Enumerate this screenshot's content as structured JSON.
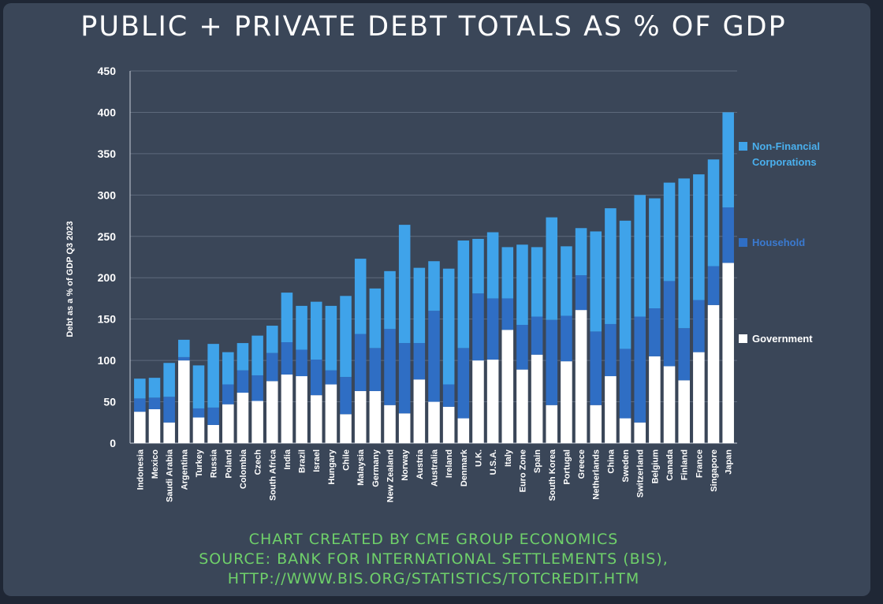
{
  "chart_data": {
    "type": "bar",
    "stacked": true,
    "title": "PUBLIC + PRIVATE DEBT TOTALS AS % OF GDP",
    "ylabel": "Debt as a % of GDP Q3 2023",
    "ylim": [
      0,
      450
    ],
    "yticks": [
      0,
      50,
      100,
      150,
      200,
      250,
      300,
      350,
      400,
      450
    ],
    "grid": true,
    "legend_position": "right",
    "categories": [
      "Indonesia",
      "Mexico",
      "Saudi Arabia",
      "Argentina",
      "Turkey",
      "Russia",
      "Poland",
      "Colombia",
      "Czech",
      "South Africa",
      "India",
      "Brazil",
      "Israel",
      "Hungary",
      "Chile",
      "Malaysia",
      "Germany",
      "New Zealand",
      "Norway",
      "Austria",
      "Australia",
      "Ireland",
      "Denmark",
      "U.K.",
      "U.S.A.",
      "Italy",
      "Euro Zone",
      "Spain",
      "South Korea",
      "Portugal",
      "Greece",
      "Netherlands",
      "China",
      "Sweden",
      "Switzerland",
      "Belgium",
      "Canada",
      "Finland",
      "France",
      "Singapore",
      "Japan"
    ],
    "series": [
      {
        "name": "Government",
        "color": "#ffffff",
        "values": [
          38,
          41,
          25,
          100,
          31,
          22,
          47,
          61,
          51,
          75,
          83,
          81,
          58,
          71,
          35,
          63,
          63,
          46,
          36,
          77,
          50,
          44,
          30,
          100,
          101,
          137,
          89,
          107,
          46,
          99,
          161,
          46,
          81,
          30,
          25,
          105,
          93,
          76,
          110,
          167,
          218
        ]
      },
      {
        "name": "Household",
        "color": "#2f6ec4",
        "values": [
          16,
          14,
          31,
          4,
          11,
          21,
          24,
          27,
          31,
          34,
          39,
          32,
          43,
          17,
          45,
          69,
          52,
          92,
          85,
          44,
          110,
          27,
          85,
          81,
          74,
          38,
          54,
          46,
          103,
          55,
          42,
          89,
          63,
          84,
          128,
          58,
          103,
          63,
          63,
          47,
          67
        ]
      },
      {
        "name": "Non-Financial Corporations",
        "color": "#3fa3ea",
        "values": [
          24,
          24,
          41,
          21,
          52,
          77,
          39,
          33,
          48,
          33,
          60,
          53,
          70,
          78,
          98,
          91,
          72,
          70,
          143,
          91,
          60,
          140,
          130,
          66,
          80,
          62,
          97,
          84,
          124,
          84,
          57,
          121,
          140,
          155,
          147,
          133,
          119,
          181,
          152,
          129,
          115
        ]
      }
    ]
  },
  "legend": [
    {
      "label": "Non-Financial Corporations",
      "lines": [
        "Non-Financial",
        "Corporations"
      ],
      "color": "#3fa3ea",
      "text_color": "#4ab0ee"
    },
    {
      "label": "Household",
      "lines": [
        "Household"
      ],
      "color": "#2f6ec4",
      "text_color": "#3a7ad0"
    },
    {
      "label": "Government",
      "lines": [
        "Government"
      ],
      "color": "#ffffff",
      "text_color": "#ffffff"
    }
  ],
  "source_lines": [
    "CHART CREATED BY CME GROUP ECONOMICS",
    "SOURCE: BANK FOR INTERNATIONAL SETTLEMENTS (BIS),",
    "HTTP://WWW.BIS.ORG/STATISTICS/TOTCREDIT.HTM"
  ]
}
